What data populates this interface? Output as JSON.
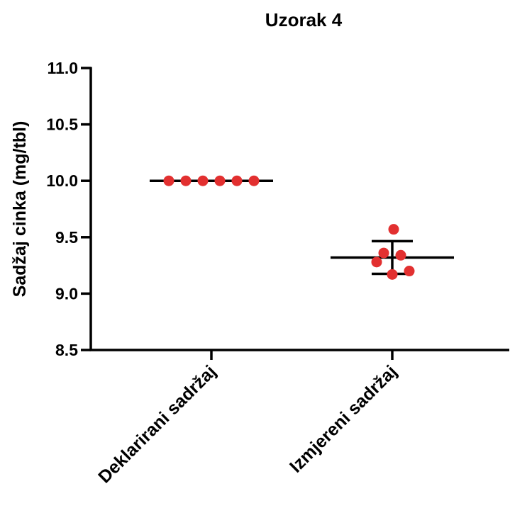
{
  "chart_data": {
    "type": "scatter",
    "title": "Uzorak 4",
    "ylabel": "Sadžaj cinka (mg/tbl)",
    "xlabel": "",
    "ylim": [
      8.5,
      11.0
    ],
    "yticks": [
      "8.5",
      "9.0",
      "9.5",
      "10.0",
      "10.5",
      "11.0"
    ],
    "categories": [
      "Deklarirani sadržaj",
      "Izmjereni sadržaj"
    ],
    "point_color": "#e23030",
    "groups": [
      {
        "category": "Deklarirani sadržaj",
        "points": [
          10.0,
          10.0,
          10.0,
          10.0,
          10.0,
          10.0
        ],
        "mean": 10.0,
        "sd_low": 10.0,
        "sd_high": 10.0
      },
      {
        "category": "Izmjereni sadržaj",
        "points": [
          9.57,
          9.36,
          9.34,
          9.28,
          9.2,
          9.17
        ],
        "mean": 9.32,
        "sd_low": 9.175,
        "sd_high": 9.465
      }
    ]
  }
}
